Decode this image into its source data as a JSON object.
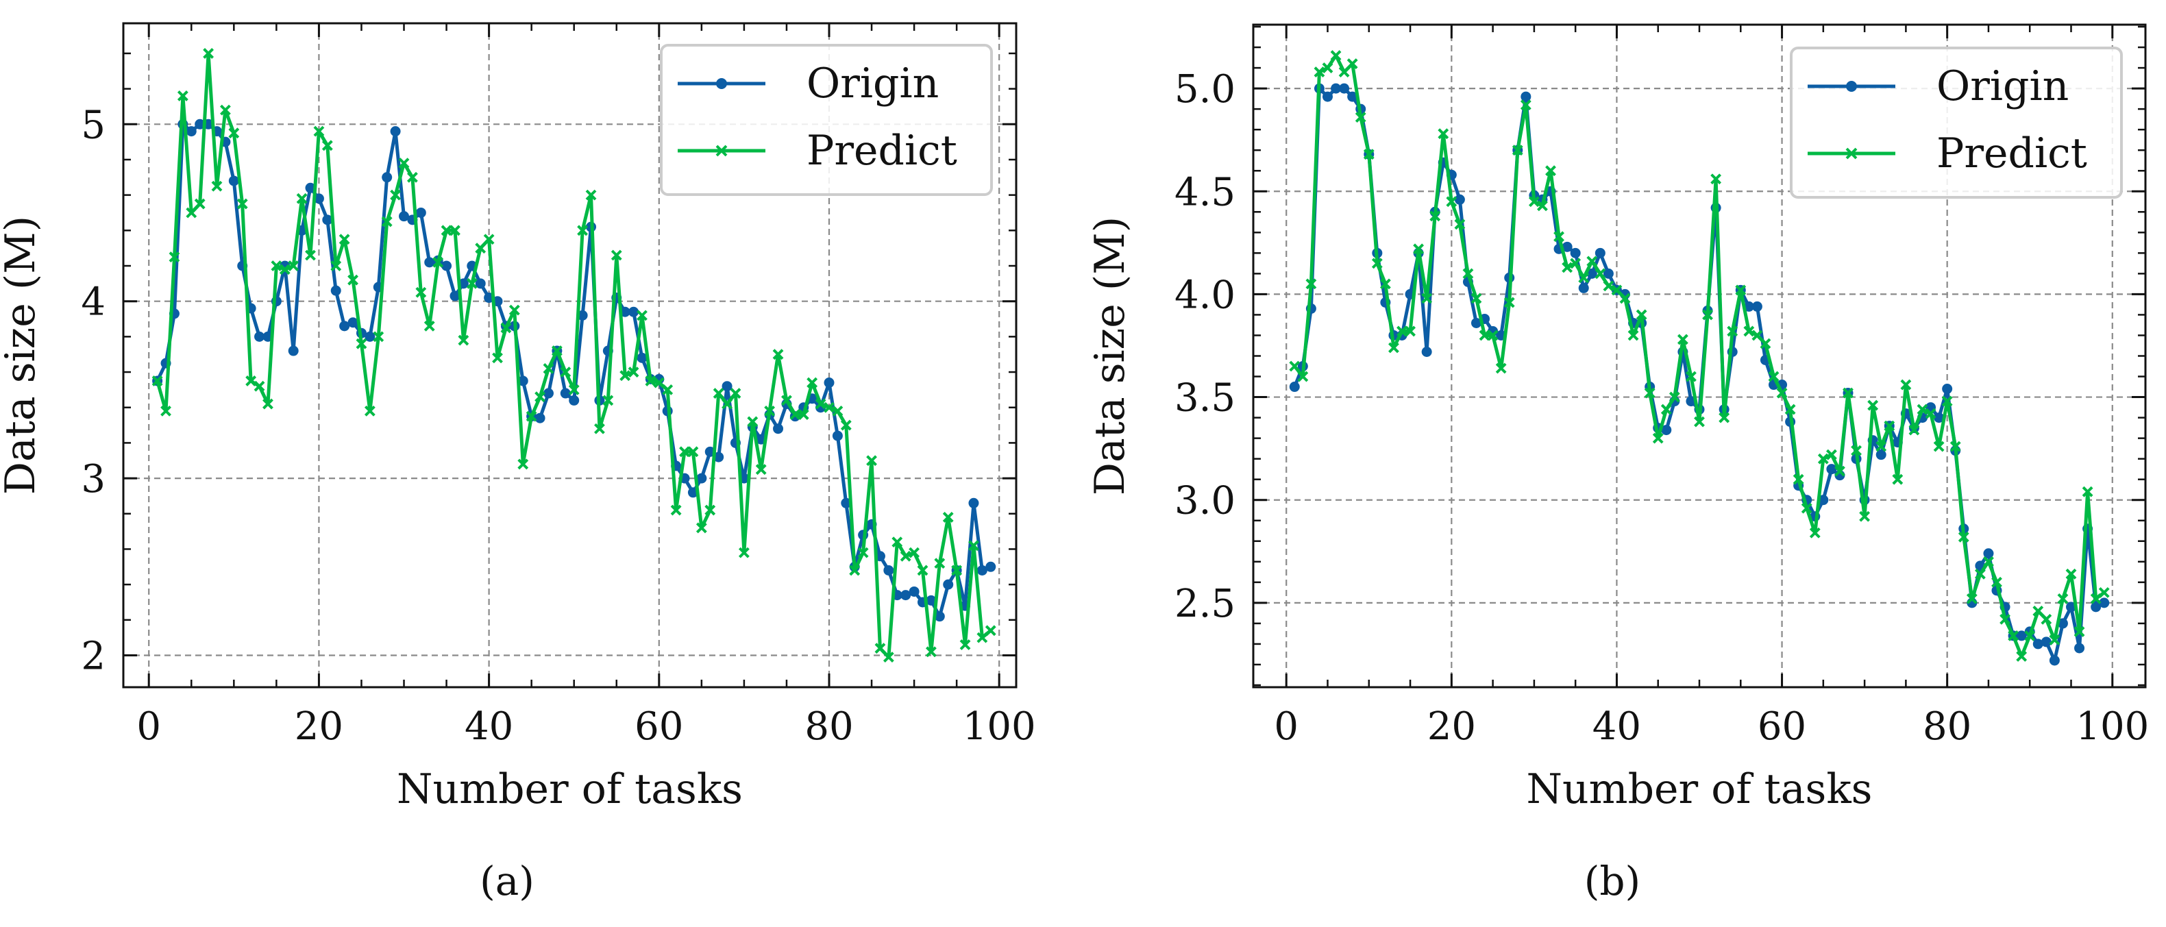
{
  "chart_data": [
    {
      "type": "line",
      "caption": "(a)",
      "xlabel": "Number of tasks",
      "ylabel": "Data size (M)",
      "xlim": [
        -3,
        102
      ],
      "ylim": [
        1.82,
        5.57
      ],
      "xticks": [
        0,
        20,
        40,
        60,
        80,
        100
      ],
      "yticks": [
        2,
        3,
        4,
        5
      ],
      "xtick_labels": [
        "0",
        "20",
        "40",
        "60",
        "80",
        "100"
      ],
      "ytick_labels": [
        "2",
        "3",
        "4",
        "5"
      ],
      "grid": true,
      "legend_position": "top-right",
      "x": [
        1,
        2,
        3,
        4,
        5,
        6,
        7,
        8,
        9,
        10,
        11,
        12,
        13,
        14,
        15,
        16,
        17,
        18,
        19,
        20,
        21,
        22,
        23,
        24,
        25,
        26,
        27,
        28,
        29,
        30,
        31,
        32,
        33,
        34,
        35,
        36,
        37,
        38,
        39,
        40,
        41,
        42,
        43,
        44,
        45,
        46,
        47,
        48,
        49,
        50,
        51,
        52,
        53,
        54,
        55,
        56,
        57,
        58,
        59,
        60,
        61,
        62,
        63,
        64,
        65,
        66,
        67,
        68,
        69,
        70,
        71,
        72,
        73,
        74,
        75,
        76,
        77,
        78,
        79,
        80,
        81,
        82,
        83,
        84,
        85,
        86,
        87,
        88,
        89,
        90,
        91,
        92,
        93,
        94,
        95,
        96,
        97,
        98,
        99
      ],
      "series": [
        {
          "name": "Origin",
          "color": "#0c5da5",
          "marker": "dot",
          "values": [
            3.55,
            3.65,
            3.93,
            5.0,
            4.96,
            5.0,
            5.0,
            4.96,
            4.9,
            4.68,
            4.2,
            3.96,
            3.8,
            3.8,
            4.0,
            4.2,
            3.72,
            4.4,
            4.64,
            4.58,
            4.46,
            4.06,
            3.86,
            3.88,
            3.82,
            3.8,
            4.08,
            4.7,
            4.96,
            4.48,
            4.46,
            4.5,
            4.22,
            4.23,
            4.2,
            4.03,
            4.1,
            4.2,
            4.1,
            4.02,
            4.0,
            3.86,
            3.86,
            3.55,
            3.35,
            3.34,
            3.48,
            3.72,
            3.48,
            3.44,
            3.92,
            4.42,
            3.44,
            3.72,
            4.02,
            3.94,
            3.94,
            3.68,
            3.56,
            3.56,
            3.38,
            3.07,
            3.0,
            2.92,
            3.0,
            3.15,
            3.12,
            3.52,
            3.2,
            3.0,
            3.29,
            3.22,
            3.36,
            3.28,
            3.42,
            3.35,
            3.4,
            3.45,
            3.4,
            3.54,
            3.24,
            2.86,
            2.5,
            2.68,
            2.74,
            2.56,
            2.48,
            2.34,
            2.34,
            2.36,
            2.3,
            2.31,
            2.22,
            2.4,
            2.48,
            2.28,
            2.86,
            2.48,
            2.5
          ]
        },
        {
          "name": "Predict",
          "color": "#00b945",
          "marker": "x",
          "values": [
            3.55,
            3.38,
            4.25,
            5.16,
            4.5,
            4.55,
            5.4,
            4.65,
            5.08,
            4.95,
            4.55,
            3.55,
            3.52,
            3.42,
            4.2,
            4.18,
            4.2,
            4.58,
            4.26,
            4.96,
            4.88,
            4.2,
            4.35,
            4.12,
            3.76,
            3.38,
            3.8,
            4.45,
            4.6,
            4.78,
            4.7,
            4.05,
            3.86,
            4.22,
            4.4,
            4.4,
            3.78,
            4.1,
            4.3,
            4.35,
            3.68,
            3.85,
            3.95,
            3.08,
            3.35,
            3.46,
            3.62,
            3.72,
            3.6,
            3.5,
            4.4,
            4.6,
            3.28,
            3.44,
            4.26,
            3.58,
            3.6,
            3.92,
            3.55,
            3.54,
            3.5,
            2.82,
            3.15,
            3.15,
            2.72,
            2.82,
            3.48,
            3.42,
            3.48,
            2.58,
            3.32,
            3.05,
            3.38,
            3.7,
            3.44,
            3.36,
            3.36,
            3.54,
            3.42,
            3.4,
            3.38,
            3.3,
            2.48,
            2.58,
            3.1,
            2.04,
            1.99,
            2.64,
            2.56,
            2.58,
            2.48,
            2.02,
            2.52,
            2.78,
            2.48,
            2.06,
            2.62,
            2.1,
            2.14
          ]
        }
      ]
    },
    {
      "type": "line",
      "caption": "(b)",
      "xlabel": "Number of tasks",
      "ylabel": "Data size (M)",
      "xlim": [
        -4,
        104
      ],
      "ylim": [
        2.09,
        5.31
      ],
      "xticks": [
        0,
        20,
        40,
        60,
        80,
        100
      ],
      "yticks": [
        2.5,
        3.0,
        3.5,
        4.0,
        4.5,
        5.0
      ],
      "xtick_labels": [
        "0",
        "20",
        "40",
        "60",
        "80",
        "100"
      ],
      "ytick_labels": [
        "2.5",
        "3.0",
        "3.5",
        "4.0",
        "4.5",
        "5.0"
      ],
      "grid": true,
      "legend_position": "top-right",
      "x": [
        1,
        2,
        3,
        4,
        5,
        6,
        7,
        8,
        9,
        10,
        11,
        12,
        13,
        14,
        15,
        16,
        17,
        18,
        19,
        20,
        21,
        22,
        23,
        24,
        25,
        26,
        27,
        28,
        29,
        30,
        31,
        32,
        33,
        34,
        35,
        36,
        37,
        38,
        39,
        40,
        41,
        42,
        43,
        44,
        45,
        46,
        47,
        48,
        49,
        50,
        51,
        52,
        53,
        54,
        55,
        56,
        57,
        58,
        59,
        60,
        61,
        62,
        63,
        64,
        65,
        66,
        67,
        68,
        69,
        70,
        71,
        72,
        73,
        74,
        75,
        76,
        77,
        78,
        79,
        80,
        81,
        82,
        83,
        84,
        85,
        86,
        87,
        88,
        89,
        90,
        91,
        92,
        93,
        94,
        95,
        96,
        97,
        98,
        99
      ],
      "series": [
        {
          "name": "Origin",
          "color": "#0c5da5",
          "marker": "dot",
          "values": [
            3.55,
            3.65,
            3.93,
            5.0,
            4.96,
            5.0,
            5.0,
            4.96,
            4.9,
            4.68,
            4.2,
            3.96,
            3.8,
            3.8,
            4.0,
            4.2,
            3.72,
            4.4,
            4.64,
            4.58,
            4.46,
            4.06,
            3.86,
            3.88,
            3.82,
            3.8,
            4.08,
            4.7,
            4.96,
            4.48,
            4.46,
            4.5,
            4.22,
            4.23,
            4.2,
            4.03,
            4.1,
            4.2,
            4.1,
            4.02,
            4.0,
            3.86,
            3.86,
            3.55,
            3.35,
            3.34,
            3.48,
            3.72,
            3.48,
            3.44,
            3.92,
            4.42,
            3.44,
            3.72,
            4.02,
            3.94,
            3.94,
            3.68,
            3.56,
            3.56,
            3.38,
            3.07,
            3.0,
            2.92,
            3.0,
            3.15,
            3.12,
            3.52,
            3.2,
            3.0,
            3.29,
            3.22,
            3.36,
            3.28,
            3.42,
            3.35,
            3.4,
            3.45,
            3.4,
            3.54,
            3.24,
            2.86,
            2.5,
            2.68,
            2.74,
            2.56,
            2.48,
            2.34,
            2.34,
            2.36,
            2.3,
            2.31,
            2.22,
            2.4,
            2.48,
            2.28,
            2.86,
            2.48,
            2.5
          ]
        },
        {
          "name": "Predict",
          "color": "#00b945",
          "marker": "x",
          "values": [
            3.65,
            3.6,
            4.05,
            5.08,
            5.1,
            5.16,
            5.08,
            5.12,
            4.86,
            4.68,
            4.15,
            4.05,
            3.74,
            3.82,
            3.82,
            4.22,
            3.98,
            4.38,
            4.78,
            4.45,
            4.34,
            4.1,
            3.98,
            3.8,
            3.8,
            3.64,
            3.96,
            4.7,
            4.92,
            4.45,
            4.43,
            4.6,
            4.28,
            4.13,
            4.15,
            4.08,
            4.16,
            4.1,
            4.04,
            4.02,
            3.98,
            3.8,
            3.9,
            3.52,
            3.3,
            3.44,
            3.5,
            3.78,
            3.6,
            3.38,
            3.9,
            4.56,
            3.4,
            3.82,
            4.02,
            3.82,
            3.8,
            3.76,
            3.6,
            3.52,
            3.44,
            3.1,
            2.96,
            2.84,
            3.2,
            3.22,
            3.14,
            3.52,
            3.24,
            2.92,
            3.46,
            3.26,
            3.36,
            3.1,
            3.56,
            3.34,
            3.44,
            3.42,
            3.26,
            3.48,
            3.26,
            2.82,
            2.52,
            2.64,
            2.7,
            2.6,
            2.42,
            2.34,
            2.24,
            2.34,
            2.46,
            2.42,
            2.32,
            2.52,
            2.64,
            2.36,
            3.04,
            2.52,
            2.55
          ]
        }
      ]
    }
  ]
}
